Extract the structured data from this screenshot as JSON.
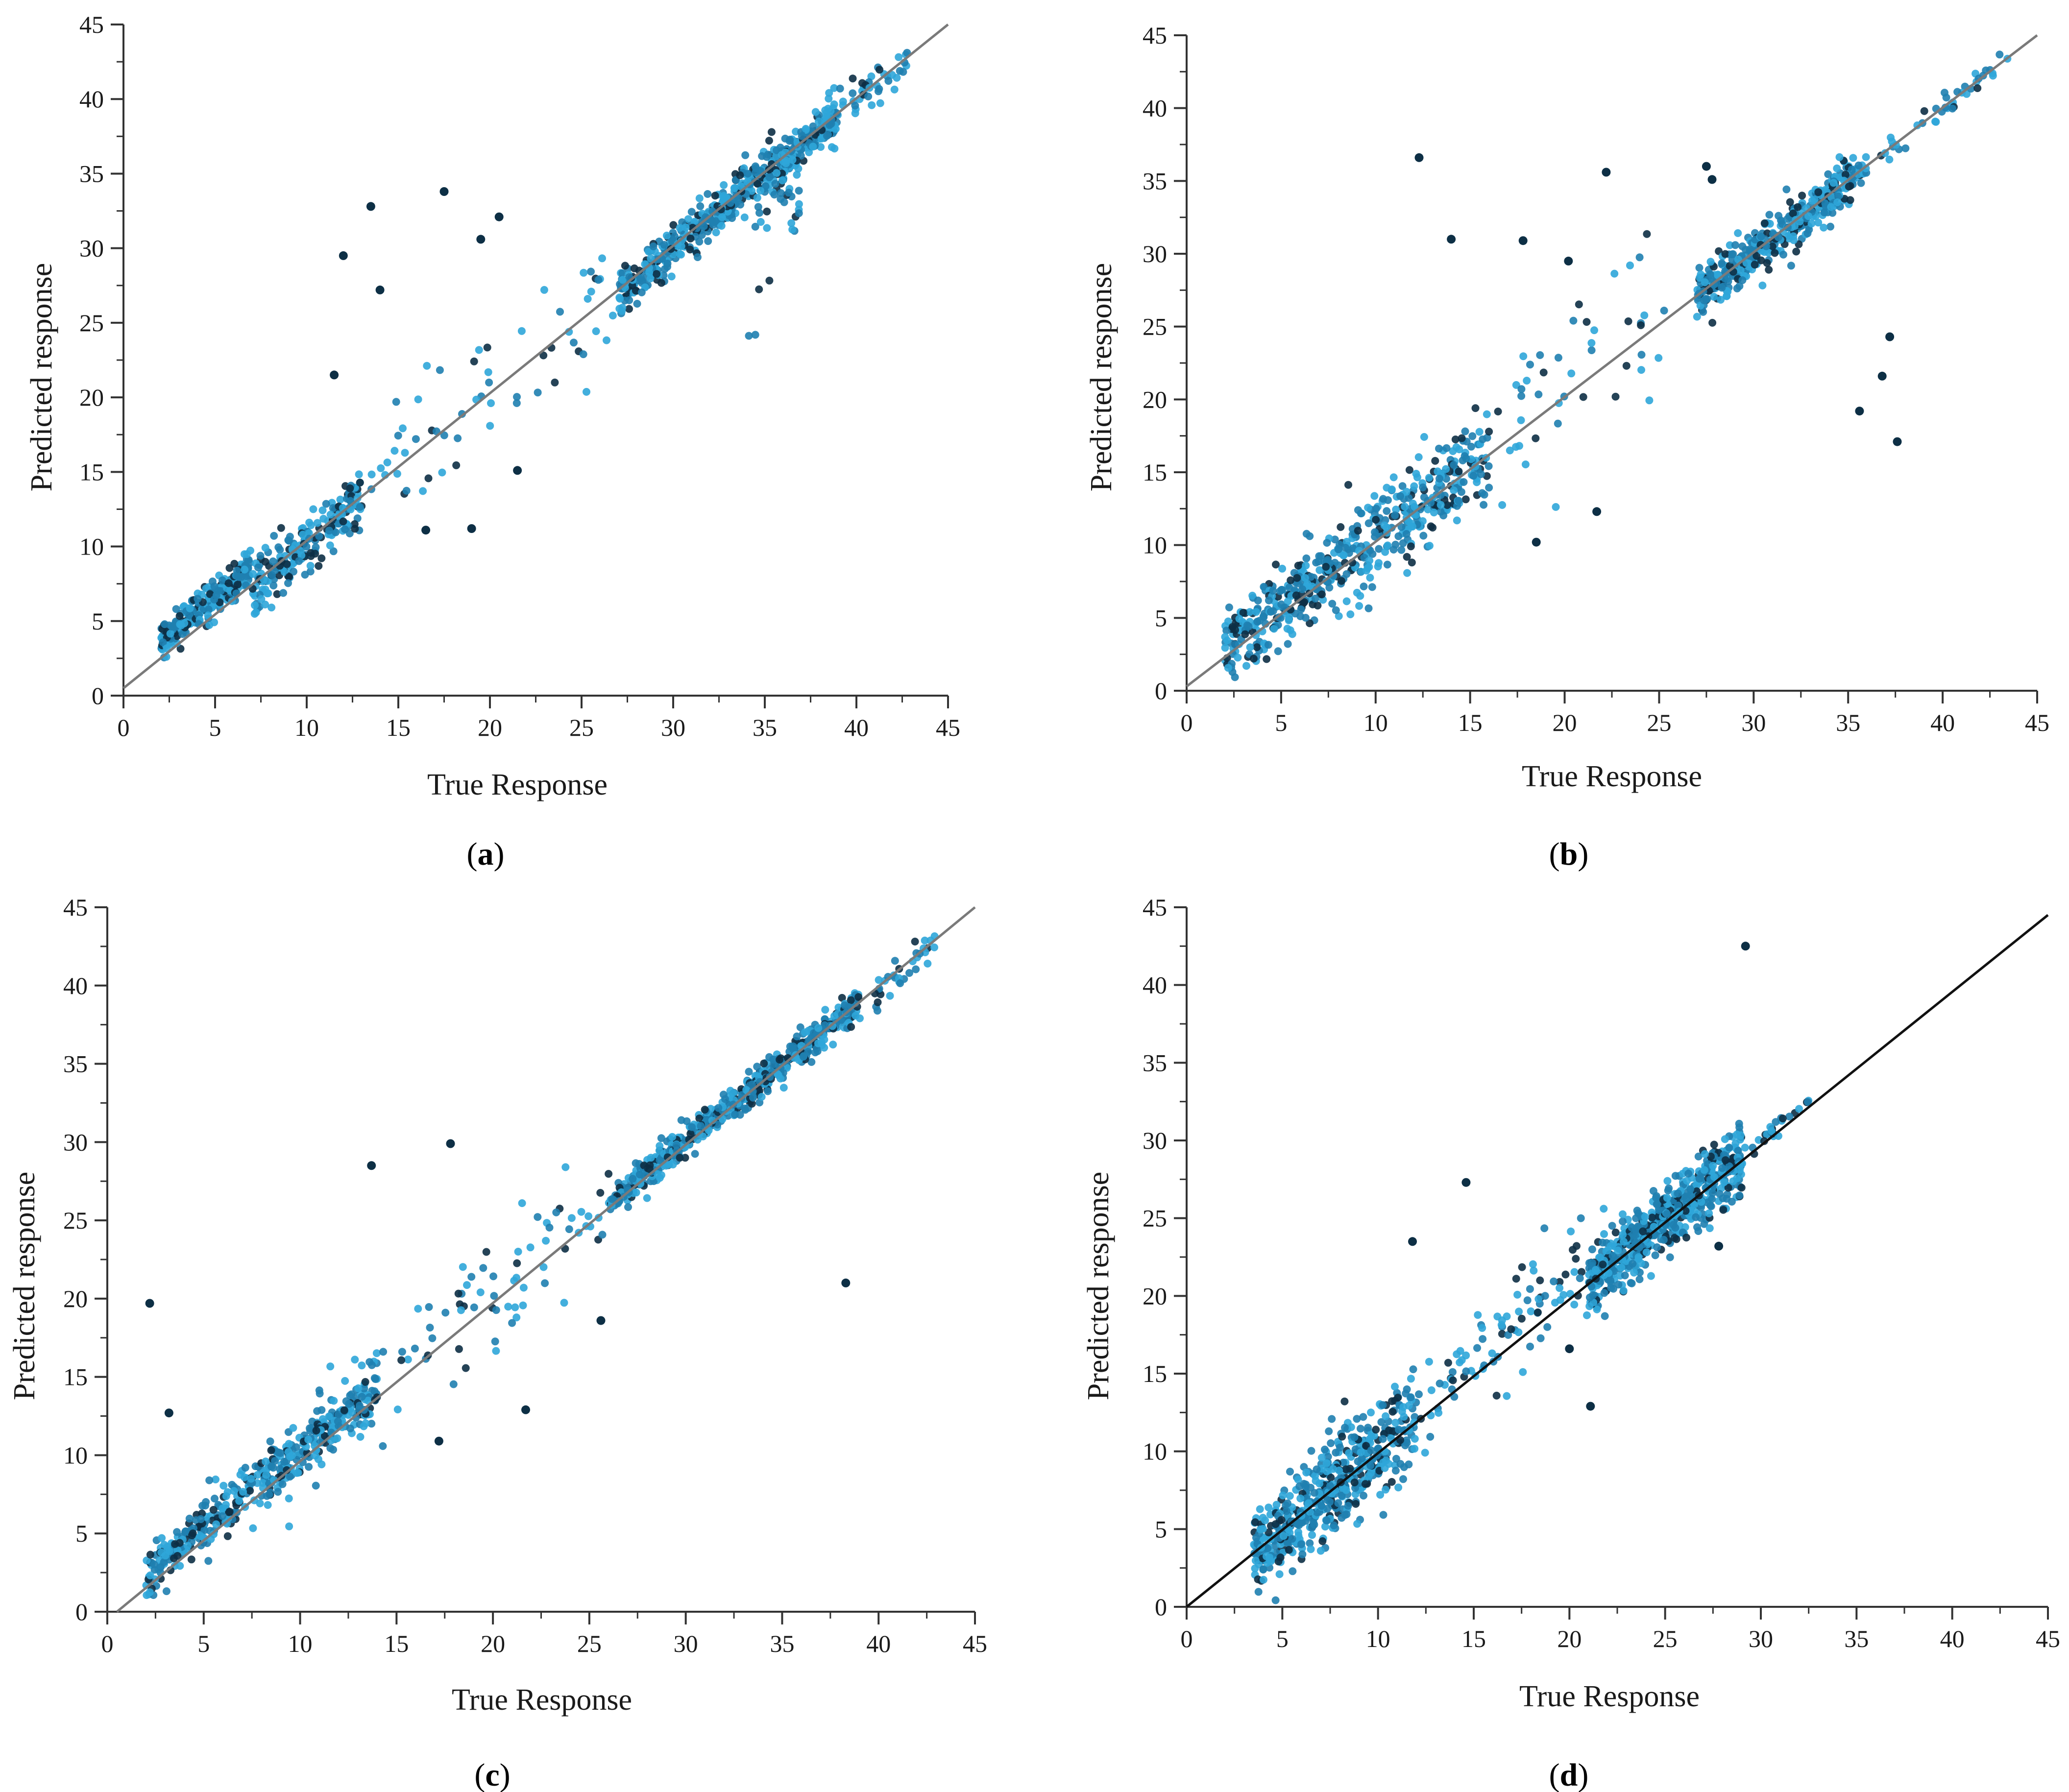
{
  "figure": {
    "colors": {
      "point_light": "#2fa6d9",
      "point_mid": "#1f7fb0",
      "point_dark": "#0d2f45",
      "axis": "#333333",
      "reference_line_gray": "#7a7a7a",
      "reference_line_black": "#111111"
    }
  },
  "chart_data": [
    {
      "type": "scatter",
      "panel": "a",
      "label_open": "(",
      "label_letter": "a",
      "label_close": ")",
      "xlabel": "True Response",
      "ylabel": "Predicted response",
      "xlim": [
        0,
        45
      ],
      "ylim": [
        0,
        45
      ],
      "xticks": [
        0,
        5,
        10,
        15,
        20,
        25,
        30,
        35,
        40,
        45
      ],
      "yticks": [
        0,
        5,
        10,
        15,
        20,
        25,
        30,
        35,
        40,
        45
      ],
      "reference_line": {
        "x1": 0,
        "y1": 0.5,
        "x2": 45,
        "y2": 45,
        "color": "#7a7a7a"
      },
      "clusters": [
        {
          "x_from": 2,
          "x_to": 7,
          "count": 260,
          "spread": 0.6,
          "offset": 1.6
        },
        {
          "x_from": 7,
          "x_to": 13,
          "count": 220,
          "spread": 1.0,
          "offset": 0.2
        },
        {
          "x_from": 13,
          "x_to": 27,
          "count": 60,
          "spread": 2.2,
          "offset": 0.8
        },
        {
          "x_from": 27,
          "x_to": 39,
          "count": 520,
          "spread": 0.7,
          "offset": 0.0
        },
        {
          "x_from": 34,
          "x_to": 37,
          "count": 40,
          "spread": 2.8,
          "offset": -3.0
        },
        {
          "x_from": 39,
          "x_to": 43,
          "count": 40,
          "spread": 0.8,
          "offset": 0.0
        }
      ],
      "outliers": [
        [
          12,
          29.5
        ],
        [
          13.5,
          32.8
        ],
        [
          14,
          27.2
        ],
        [
          17.5,
          33.8
        ],
        [
          20.5,
          32.1
        ],
        [
          19.5,
          30.6
        ],
        [
          19,
          11.2
        ],
        [
          16.5,
          11.1
        ],
        [
          21.5,
          15.1
        ],
        [
          11.5,
          21.5
        ]
      ]
    },
    {
      "type": "scatter",
      "panel": "b",
      "label_open": "(",
      "label_letter": "b",
      "label_close": ")",
      "xlabel": "True Response",
      "ylabel": "Predicted response",
      "xlim": [
        0,
        45
      ],
      "ylim": [
        0,
        45
      ],
      "xticks": [
        0,
        5,
        10,
        15,
        20,
        25,
        30,
        35,
        40,
        45
      ],
      "yticks": [
        0,
        5,
        10,
        15,
        20,
        25,
        30,
        35,
        40,
        45
      ],
      "reference_line": {
        "x1": 0,
        "y1": 0.3,
        "x2": 45,
        "y2": 45,
        "color": "#7a7a7a"
      },
      "clusters": [
        {
          "x_from": 2,
          "x_to": 9,
          "count": 280,
          "spread": 1.3,
          "offset": 0.8
        },
        {
          "x_from": 9,
          "x_to": 16,
          "count": 260,
          "spread": 1.6,
          "offset": 0.4
        },
        {
          "x_from": 16,
          "x_to": 26,
          "count": 45,
          "spread": 3.2,
          "offset": 1.5
        },
        {
          "x_from": 27,
          "x_to": 36,
          "count": 420,
          "spread": 0.8,
          "offset": 0.0
        },
        {
          "x_from": 36,
          "x_to": 43.5,
          "count": 40,
          "spread": 0.4,
          "offset": 0.0
        }
      ],
      "outliers": [
        [
          12.3,
          36.6
        ],
        [
          22.2,
          35.6
        ],
        [
          27.5,
          36.0
        ],
        [
          27.8,
          35.1
        ],
        [
          14.0,
          31.0
        ],
        [
          17.8,
          30.9
        ],
        [
          35.6,
          19.2
        ],
        [
          37.6,
          17.1
        ],
        [
          36.8,
          21.6
        ],
        [
          37.2,
          24.3
        ],
        [
          20.2,
          29.5
        ],
        [
          21.7,
          12.3
        ],
        [
          18.5,
          10.2
        ]
      ]
    },
    {
      "type": "scatter",
      "panel": "c",
      "label_open": "(",
      "label_letter": "c",
      "label_close": ")",
      "xlabel": "True Response",
      "ylabel": "Predicted response",
      "xlim": [
        0,
        45
      ],
      "ylim": [
        0,
        45
      ],
      "xticks": [
        0,
        5,
        10,
        15,
        20,
        25,
        30,
        35,
        40,
        45
      ],
      "yticks": [
        0,
        5,
        10,
        15,
        20,
        25,
        30,
        35,
        40,
        45
      ],
      "reference_line": {
        "x1": 0.5,
        "y1": 0,
        "x2": 45,
        "y2": 45,
        "color": "#7a7a7a"
      },
      "clusters": [
        {
          "x_from": 2,
          "x_to": 8,
          "count": 200,
          "spread": 0.9,
          "offset": 0.5
        },
        {
          "x_from": 8,
          "x_to": 14,
          "count": 250,
          "spread": 1.0,
          "offset": 0.3
        },
        {
          "x_from": 14,
          "x_to": 26,
          "count": 70,
          "spread": 2.0,
          "offset": 0.3
        },
        {
          "x_from": 26,
          "x_to": 39,
          "count": 600,
          "spread": 0.5,
          "offset": 0.0
        },
        {
          "x_from": 39,
          "x_to": 43,
          "count": 35,
          "spread": 0.6,
          "offset": -0.3
        }
      ],
      "outliers": [
        [
          2.2,
          19.7
        ],
        [
          3.2,
          12.7
        ],
        [
          13.7,
          28.5
        ],
        [
          17.8,
          29.9
        ],
        [
          38.3,
          21.0
        ],
        [
          21.7,
          12.9
        ],
        [
          25.6,
          18.6
        ],
        [
          17.2,
          10.9
        ]
      ]
    },
    {
      "type": "scatter",
      "panel": "d",
      "label_open": "(",
      "label_letter": "d",
      "label_close": ")",
      "xlabel": "True Response",
      "ylabel": "Predicted response",
      "xlim": [
        0,
        45
      ],
      "ylim": [
        0,
        45
      ],
      "xticks": [
        0,
        5,
        10,
        15,
        20,
        25,
        30,
        35,
        40,
        45
      ],
      "yticks": [
        0,
        5,
        10,
        15,
        20,
        25,
        30,
        35,
        40,
        45
      ],
      "reference_line": {
        "x1": 0,
        "y1": 0,
        "x2": 45,
        "y2": 44.5,
        "color": "#111111"
      },
      "clusters": [
        {
          "x_from": 3.5,
          "x_to": 12,
          "count": 520,
          "spread": 1.5,
          "offset": 0.0
        },
        {
          "x_from": 12,
          "x_to": 21,
          "count": 90,
          "spread": 1.8,
          "offset": 1.0
        },
        {
          "x_from": 21,
          "x_to": 29,
          "count": 620,
          "spread": 1.1,
          "offset": 0.0
        },
        {
          "x_from": 29,
          "x_to": 32.5,
          "count": 25,
          "spread": 0.5,
          "offset": 0.0
        }
      ],
      "outliers": [
        [
          29.2,
          42.5
        ],
        [
          14.6,
          27.3
        ],
        [
          11.8,
          23.5
        ],
        [
          21.1,
          12.9
        ],
        [
          27.8,
          23.2
        ],
        [
          20.0,
          16.6
        ]
      ]
    }
  ]
}
